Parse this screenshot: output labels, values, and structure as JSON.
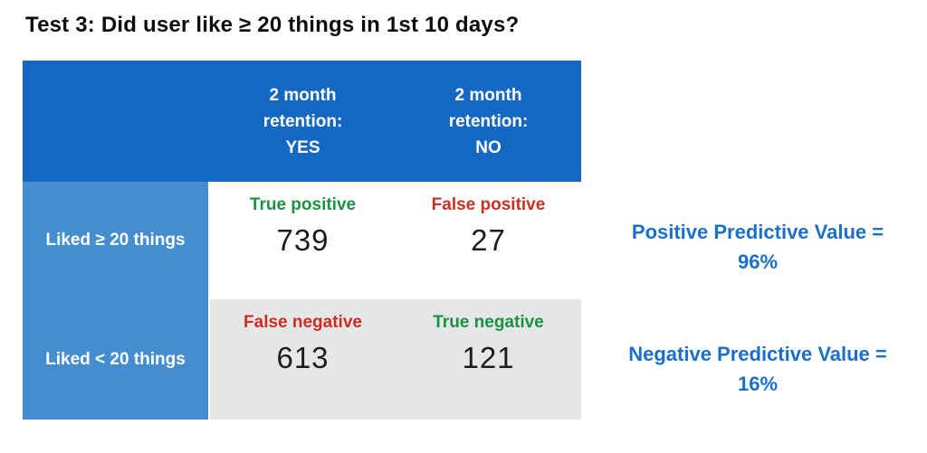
{
  "title": "Test 3: Did user like ≥ 20 things in 1st 10 days?",
  "matrix": {
    "col_headers": [
      "2 month\nretention:\nYES",
      "2 month\nretention:\nNO"
    ],
    "rows": [
      {
        "label": "Liked ≥ 20 things",
        "cells": [
          {
            "tag": "True positive",
            "kind": "green",
            "value": "739"
          },
          {
            "tag": "False positive",
            "kind": "red",
            "value": "27"
          }
        ]
      },
      {
        "label": "Liked < 20 things",
        "cells": [
          {
            "tag": "False negative",
            "kind": "red",
            "value": "613"
          },
          {
            "tag": "True negative",
            "kind": "green",
            "value": "121"
          }
        ]
      }
    ]
  },
  "metrics": [
    {
      "text": "Positive Predictive Value =\n96%"
    },
    {
      "text": "Negative Predictive Value =\n16%"
    }
  ],
  "colors": {
    "header_bg": "#1568C1",
    "row_label_bg": "#448ECF",
    "row2_bg": "#E5E6E8",
    "green": "#1B9142",
    "red": "#CE2E21",
    "metric_blue": "#1B6FC9",
    "number_color": "#1C1C1E"
  },
  "chart_data": {
    "type": "table",
    "title": "Test 3: Did user like ≥ 20 things in 1st 10 days?",
    "columns": [
      "",
      "2 month retention: YES",
      "2 month retention: NO"
    ],
    "rows": [
      [
        "Liked ≥ 20 things",
        739,
        27
      ],
      [
        "Liked < 20 things",
        613,
        121
      ]
    ],
    "cell_labels": [
      [
        "True positive",
        "False positive"
      ],
      [
        "False negative",
        "True negative"
      ]
    ],
    "annotations": [
      "Positive Predictive Value = 96%",
      "Negative Predictive Value = 16%"
    ]
  }
}
